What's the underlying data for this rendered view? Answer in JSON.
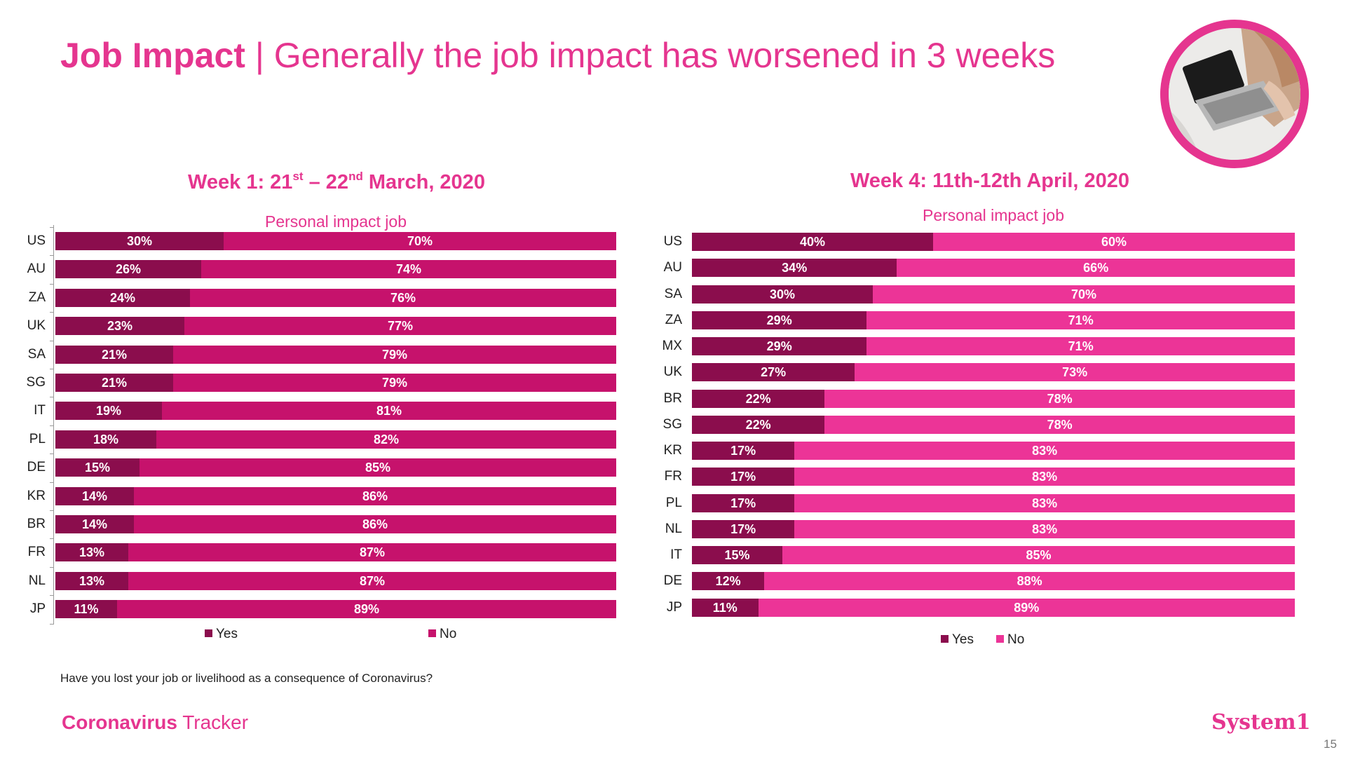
{
  "header": {
    "title_bold": "Job Impact",
    "separator": " | ",
    "title_rest": "Generally the job impact has worsened in 3 weeks"
  },
  "image": {
    "semantic": "person-using-laptop-photo"
  },
  "colors": {
    "accent": "#e5358f",
    "yes_dark": "#8b0d4d",
    "no_week1": "#c6126c",
    "no_week4": "#ec3497",
    "text": "#222222"
  },
  "chart_data": [
    {
      "type": "bar",
      "orientation": "horizontal-stacked-100",
      "title": {
        "prefix": "Week 1: 21",
        "sup1": "st",
        "mid": " – 22",
        "sup2": "nd",
        "suffix": " March, 2020"
      },
      "subtitle": "Personal impact job",
      "categories": [
        "US",
        "AU",
        "ZA",
        "UK",
        "SA",
        "SG",
        "IT",
        "PL",
        "DE",
        "KR",
        "BR",
        "FR",
        "NL",
        "JP"
      ],
      "series": [
        {
          "name": "Yes",
          "values": [
            30,
            26,
            24,
            23,
            21,
            21,
            19,
            18,
            15,
            14,
            14,
            13,
            13,
            11
          ],
          "labels": [
            "30%",
            "26%",
            "24%",
            "23%",
            "21%",
            "21%",
            "19%",
            "18%",
            "15%",
            "14%",
            "14%",
            "13%",
            "13%",
            "11%"
          ]
        },
        {
          "name": "No",
          "values": [
            70,
            74,
            76,
            77,
            79,
            79,
            81,
            82,
            85,
            86,
            86,
            87,
            87,
            89
          ],
          "labels": [
            "70%",
            "74%",
            "76%",
            "77%",
            "79%",
            "79%",
            "81%",
            "82%",
            "85%",
            "86%",
            "86%",
            "87%",
            "87%",
            "89%"
          ]
        }
      ],
      "legend": [
        "Yes",
        "No"
      ],
      "xlim": [
        0,
        100
      ]
    },
    {
      "type": "bar",
      "orientation": "horizontal-stacked-100",
      "title": {
        "text": "Week 4: 11th-12th April, 2020"
      },
      "subtitle": "Personal impact job",
      "categories": [
        "US",
        "AU",
        "SA",
        "ZA",
        "MX",
        "UK",
        "BR",
        "SG",
        "KR",
        "FR",
        "PL",
        "NL",
        "IT",
        "DE",
        "JP"
      ],
      "series": [
        {
          "name": "Yes",
          "values": [
            40,
            34,
            30,
            29,
            29,
            27,
            22,
            22,
            17,
            17,
            17,
            17,
            15,
            12,
            11
          ],
          "labels": [
            "40%",
            "34%",
            "30%",
            "29%",
            "29%",
            "27%",
            "22%",
            "22%",
            "17%",
            "17%",
            "17%",
            "17%",
            "15%",
            "12%",
            "11%"
          ]
        },
        {
          "name": "No",
          "values": [
            60,
            66,
            70,
            71,
            71,
            73,
            78,
            78,
            83,
            83,
            83,
            83,
            85,
            88,
            89
          ],
          "labels": [
            "60%",
            "66%",
            "70%",
            "71%",
            "71%",
            "73%",
            "78%",
            "78%",
            "83%",
            "83%",
            "83%",
            "83%",
            "85%",
            "88%",
            "89%"
          ]
        }
      ],
      "legend": [
        "Yes",
        "No"
      ],
      "xlim": [
        0,
        100
      ]
    }
  ],
  "footer": {
    "question": "Have you lost your job or livelihood as a consequence of Coronavirus?",
    "brand_bold": "Coronavirus",
    "brand_rest": " Tracker",
    "logo": "System1",
    "page_number": "15"
  }
}
